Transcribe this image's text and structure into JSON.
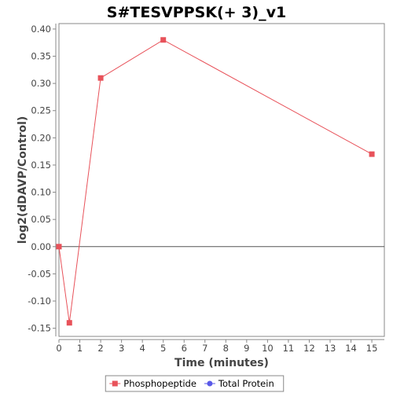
{
  "chart_data": {
    "type": "line",
    "title": "S#TESVPPSK(+ 3)_v1",
    "xlabel": "Time (minutes)",
    "ylabel": "log2(dDAVP/Control)",
    "xlim": [
      0,
      15.6
    ],
    "ylim": [
      -0.165,
      0.41
    ],
    "xticks": [
      0,
      1,
      2,
      3,
      4,
      5,
      6,
      7,
      8,
      9,
      10,
      11,
      12,
      13,
      14,
      15
    ],
    "yticks": [
      -0.15,
      -0.1,
      -0.05,
      0.0,
      0.05,
      0.1,
      0.15,
      0.2,
      0.25,
      0.3,
      0.35,
      0.4
    ],
    "grid": false,
    "zero_line": true,
    "legend_position": "bottom",
    "series": [
      {
        "name": "Phosphopeptide",
        "color": "#e8525a",
        "marker": "square",
        "x": [
          0,
          0.5,
          2,
          5,
          15
        ],
        "y": [
          0.0,
          -0.14,
          0.31,
          0.38,
          0.17
        ]
      },
      {
        "name": "Total Protein",
        "color": "#5a5ae8",
        "marker": "circle",
        "x": [],
        "y": []
      }
    ]
  }
}
